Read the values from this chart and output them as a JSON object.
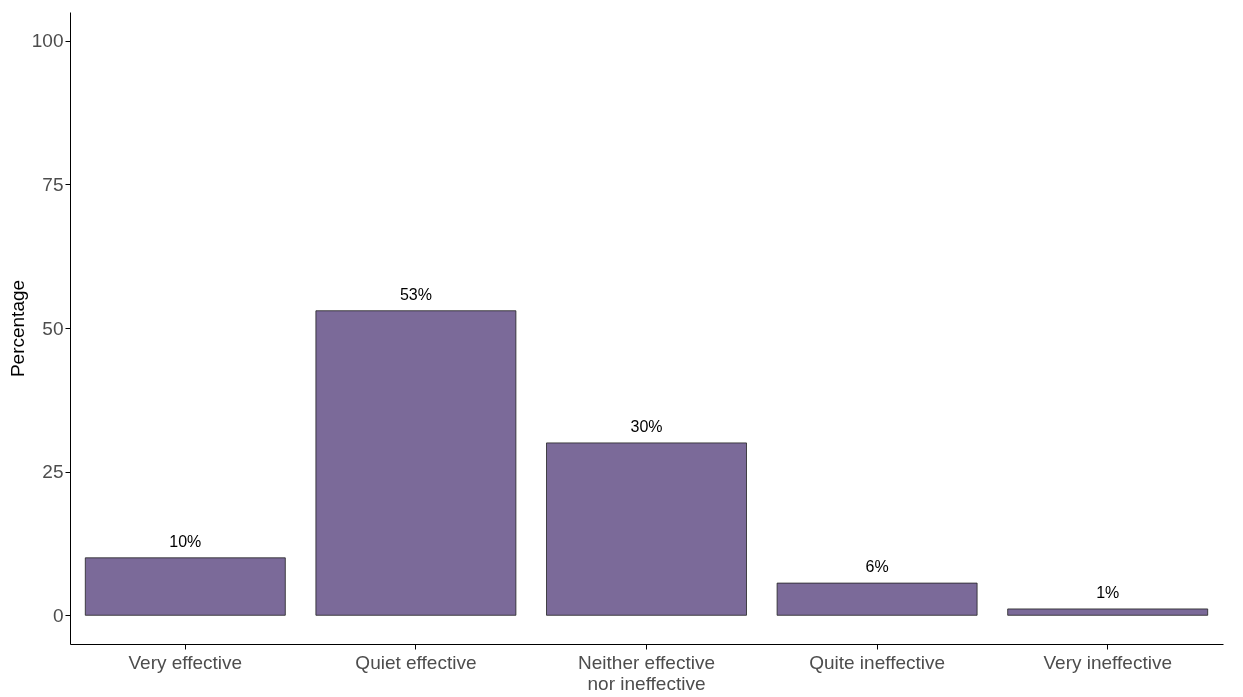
{
  "chart_data": {
    "type": "bar",
    "ylabel": "Percentage",
    "categories": [
      "Very effective",
      "Quiet effective",
      "Neither effective nor ineffective",
      "Quite ineffective",
      "Very ineffective"
    ],
    "values": [
      10,
      53,
      30,
      5.6,
      1.1
    ],
    "value_labels": [
      "10%",
      "53%",
      "30%",
      "6%",
      "1%"
    ],
    "color": "#7b6a99",
    "ylim": [
      -5,
      105
    ],
    "yticks": [
      0,
      25,
      50,
      75,
      100
    ],
    "grid": false
  }
}
